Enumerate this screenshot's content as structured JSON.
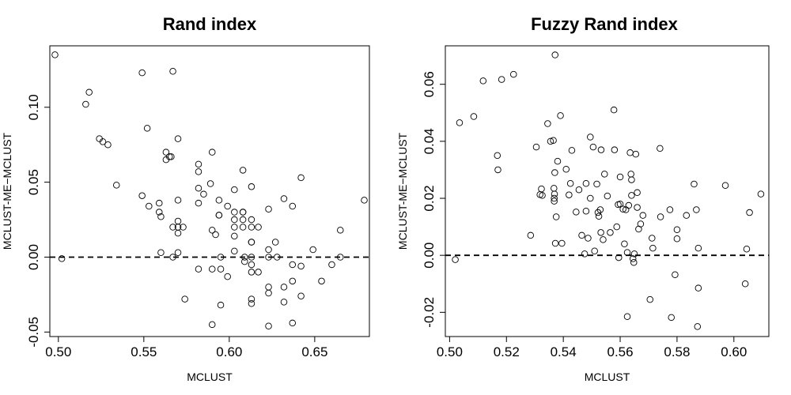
{
  "chart_data": [
    {
      "type": "scatter",
      "title": "Rand index",
      "xlabel": "MCLUST",
      "ylabel": "MCLUST-ME−MCLUST",
      "xlim": [
        0.495,
        0.682
      ],
      "ylim": [
        -0.053,
        0.141
      ],
      "xticks": [
        0.5,
        0.55,
        0.6,
        0.65
      ],
      "xtick_labels": [
        "0.50",
        "0.55",
        "0.60",
        "0.65"
      ],
      "yticks": [
        -0.05,
        0.0,
        0.05,
        0.1
      ],
      "ytick_labels": [
        "-0.05",
        "0.00",
        "0.05",
        "0.10"
      ],
      "reference_line": {
        "y": 0,
        "style": "dashed"
      },
      "grid": false,
      "points": [
        [
          0.498,
          0.135
        ],
        [
          0.502,
          -0.001
        ],
        [
          0.516,
          0.102
        ],
        [
          0.518,
          0.11
        ],
        [
          0.524,
          0.079
        ],
        [
          0.526,
          0.077
        ],
        [
          0.529,
          0.075
        ],
        [
          0.534,
          0.048
        ],
        [
          0.549,
          0.123
        ],
        [
          0.549,
          0.041
        ],
        [
          0.552,
          0.086
        ],
        [
          0.553,
          0.034
        ],
        [
          0.559,
          0.036
        ],
        [
          0.559,
          0.03
        ],
        [
          0.56,
          0.027
        ],
        [
          0.56,
          0.003
        ],
        [
          0.563,
          0.07
        ],
        [
          0.563,
          0.065
        ],
        [
          0.565,
          0.067
        ],
        [
          0.566,
          0.067
        ],
        [
          0.567,
          0.124
        ],
        [
          0.567,
          0.02
        ],
        [
          0.567,
          0.0
        ],
        [
          0.57,
          0.079
        ],
        [
          0.57,
          0.038
        ],
        [
          0.57,
          0.024
        ],
        [
          0.57,
          0.02
        ],
        [
          0.57,
          0.016
        ],
        [
          0.57,
          0.003
        ],
        [
          0.573,
          0.02
        ],
        [
          0.574,
          -0.028
        ],
        [
          0.582,
          0.062
        ],
        [
          0.582,
          0.057
        ],
        [
          0.582,
          0.046
        ],
        [
          0.582,
          0.036
        ],
        [
          0.582,
          -0.008
        ],
        [
          0.585,
          0.042
        ],
        [
          0.589,
          0.049
        ],
        [
          0.59,
          0.07
        ],
        [
          0.59,
          0.018
        ],
        [
          0.59,
          -0.008
        ],
        [
          0.59,
          -0.045
        ],
        [
          0.592,
          0.015
        ],
        [
          0.594,
          0.038
        ],
        [
          0.594,
          0.028
        ],
        [
          0.594,
          0.028
        ],
        [
          0.595,
          0.0
        ],
        [
          0.595,
          -0.008
        ],
        [
          0.595,
          -0.032
        ],
        [
          0.599,
          0.034
        ],
        [
          0.599,
          -0.013
        ],
        [
          0.603,
          0.045
        ],
        [
          0.603,
          0.03
        ],
        [
          0.603,
          0.025
        ],
        [
          0.603,
          0.02
        ],
        [
          0.603,
          0.014
        ],
        [
          0.603,
          0.004
        ],
        [
          0.608,
          0.058
        ],
        [
          0.608,
          0.03
        ],
        [
          0.608,
          0.03
        ],
        [
          0.608,
          0.025
        ],
        [
          0.608,
          0.02
        ],
        [
          0.609,
          0.0
        ],
        [
          0.609,
          -0.003
        ],
        [
          0.613,
          0.047
        ],
        [
          0.613,
          0.025
        ],
        [
          0.613,
          0.02
        ],
        [
          0.613,
          0.01
        ],
        [
          0.613,
          0.01
        ],
        [
          0.613,
          0.0
        ],
        [
          0.613,
          -0.005
        ],
        [
          0.613,
          -0.01
        ],
        [
          0.613,
          -0.028
        ],
        [
          0.613,
          -0.031
        ],
        [
          0.617,
          0.02
        ],
        [
          0.617,
          -0.01
        ],
        [
          0.623,
          0.032
        ],
        [
          0.623,
          0.005
        ],
        [
          0.623,
          0.0
        ],
        [
          0.623,
          -0.02
        ],
        [
          0.623,
          -0.024
        ],
        [
          0.623,
          -0.046
        ],
        [
          0.627,
          0.01
        ],
        [
          0.628,
          0.0
        ],
        [
          0.632,
          0.039
        ],
        [
          0.632,
          -0.02
        ],
        [
          0.632,
          -0.03
        ],
        [
          0.637,
          0.034
        ],
        [
          0.637,
          -0.005
        ],
        [
          0.637,
          -0.016
        ],
        [
          0.637,
          -0.044
        ],
        [
          0.642,
          0.053
        ],
        [
          0.642,
          -0.006
        ],
        [
          0.642,
          -0.026
        ],
        [
          0.649,
          0.005
        ],
        [
          0.654,
          -0.016
        ],
        [
          0.66,
          -0.005
        ],
        [
          0.665,
          0.018
        ],
        [
          0.665,
          0.0
        ],
        [
          0.679,
          0.038
        ]
      ]
    },
    {
      "type": "scatter",
      "title": "Fuzzy Rand index",
      "xlabel": "MCLUST",
      "ylabel": "MCLUST-ME−MCLUST",
      "xlim": [
        0.4985,
        0.6123
      ],
      "ylim": [
        -0.0285,
        0.0735
      ],
      "xticks": [
        0.5,
        0.52,
        0.54,
        0.56,
        0.58,
        0.6
      ],
      "xtick_labels": [
        "0.50",
        "0.52",
        "0.54",
        "0.56",
        "0.58",
        "0.60"
      ],
      "yticks": [
        -0.02,
        0.0,
        0.02,
        0.04,
        0.06
      ],
      "ytick_labels": [
        "-0.02",
        "0.00",
        "0.02",
        "0.04",
        "0.06"
      ],
      "reference_line": {
        "y": 0,
        "style": "dashed"
      },
      "grid": false,
      "points": [
        [
          0.502,
          -0.0015
        ],
        [
          0.5035,
          0.0465
        ],
        [
          0.5085,
          0.0487
        ],
        [
          0.5118,
          0.0612
        ],
        [
          0.5168,
          0.035
        ],
        [
          0.517,
          0.03
        ],
        [
          0.5183,
          0.0617
        ],
        [
          0.5225,
          0.0635
        ],
        [
          0.5285,
          0.007
        ],
        [
          0.5305,
          0.038
        ],
        [
          0.5318,
          0.0213
        ],
        [
          0.5323,
          0.0233
        ],
        [
          0.5326,
          0.021
        ],
        [
          0.5345,
          0.0462
        ],
        [
          0.5355,
          0.04
        ],
        [
          0.5365,
          0.0403
        ],
        [
          0.5367,
          0.0235
        ],
        [
          0.5368,
          0.019
        ],
        [
          0.5368,
          0.02
        ],
        [
          0.5369,
          0.0215
        ],
        [
          0.537,
          0.029
        ],
        [
          0.5371,
          0.0703
        ],
        [
          0.5372,
          0.0042
        ],
        [
          0.5375,
          0.0135
        ],
        [
          0.538,
          0.033
        ],
        [
          0.539,
          0.049
        ],
        [
          0.5395,
          0.0042
        ],
        [
          0.541,
          0.0302
        ],
        [
          0.542,
          0.0212
        ],
        [
          0.5425,
          0.0252
        ],
        [
          0.543,
          0.0368
        ],
        [
          0.5445,
          0.0152
        ],
        [
          0.5455,
          0.023
        ],
        [
          0.5465,
          0.007
        ],
        [
          0.5475,
          0.0005
        ],
        [
          0.548,
          0.0252
        ],
        [
          0.548,
          0.0155
        ],
        [
          0.5487,
          0.006
        ],
        [
          0.5495,
          0.0415
        ],
        [
          0.5495,
          0.02
        ],
        [
          0.5505,
          0.038
        ],
        [
          0.551,
          0.0015
        ],
        [
          0.5518,
          0.025
        ],
        [
          0.5522,
          0.015
        ],
        [
          0.5525,
          0.0137
        ],
        [
          0.553,
          0.016
        ],
        [
          0.5532,
          0.008
        ],
        [
          0.5533,
          0.037
        ],
        [
          0.554,
          0.0055
        ],
        [
          0.5545,
          0.0285
        ],
        [
          0.5555,
          0.0208
        ],
        [
          0.5565,
          0.008
        ],
        [
          0.5578,
          0.051
        ],
        [
          0.558,
          0.037
        ],
        [
          0.5588,
          0.01
        ],
        [
          0.5593,
          0.0178
        ],
        [
          0.5595,
          -0.0008
        ],
        [
          0.56,
          0.018
        ],
        [
          0.56,
          0.0275
        ],
        [
          0.561,
          0.0162
        ],
        [
          0.5615,
          0.004
        ],
        [
          0.562,
          0.016
        ],
        [
          0.5625,
          0.001
        ],
        [
          0.5625,
          -0.0215
        ],
        [
          0.563,
          0.0175
        ],
        [
          0.5635,
          0.036
        ],
        [
          0.5638,
          0.0285
        ],
        [
          0.564,
          0.0265
        ],
        [
          0.564,
          0.021
        ],
        [
          0.5645,
          -0.0012
        ],
        [
          0.5648,
          -0.0025
        ],
        [
          0.565,
          0.0005
        ],
        [
          0.5655,
          0.0355
        ],
        [
          0.566,
          0.022
        ],
        [
          0.566,
          0.0168
        ],
        [
          0.5665,
          0.0092
        ],
        [
          0.5672,
          0.011
        ],
        [
          0.568,
          0.014
        ],
        [
          0.5705,
          -0.0155
        ],
        [
          0.5712,
          0.006
        ],
        [
          0.5715,
          0.0025
        ],
        [
          0.574,
          0.0375
        ],
        [
          0.5742,
          0.0135
        ],
        [
          0.5775,
          0.016
        ],
        [
          0.578,
          -0.0218
        ],
        [
          0.5793,
          -0.0068
        ],
        [
          0.58,
          0.009
        ],
        [
          0.58,
          0.0058
        ],
        [
          0.5833,
          0.014
        ],
        [
          0.586,
          0.025
        ],
        [
          0.5868,
          0.016
        ],
        [
          0.5875,
          0.0025
        ],
        [
          0.5875,
          -0.0115
        ],
        [
          0.5872,
          -0.025
        ],
        [
          0.597,
          0.0245
        ],
        [
          0.604,
          -0.01
        ],
        [
          0.6045,
          0.0022
        ],
        [
          0.6055,
          0.015
        ],
        [
          0.6095,
          0.0215
        ]
      ]
    }
  ]
}
